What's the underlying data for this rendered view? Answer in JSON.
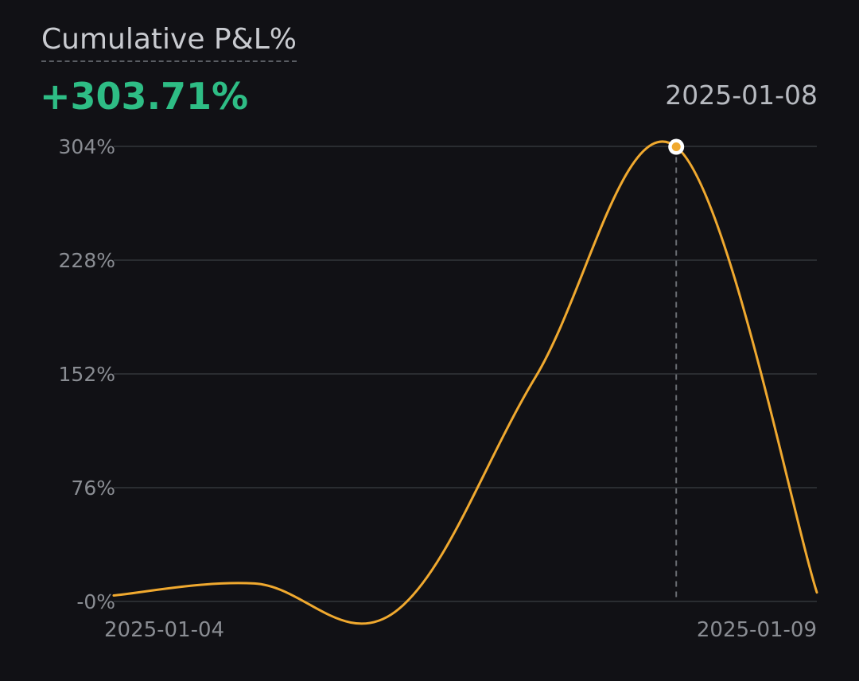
{
  "header": {
    "title": "Cumulative P&L%",
    "value": "+303.71%",
    "selected_date": "2025-01-08"
  },
  "colors": {
    "background": "#111115",
    "line": "#f0a92f",
    "positive": "#2ebd85",
    "grid": "#2a2d31"
  },
  "chart_data": {
    "type": "line",
    "title": "Cumulative P&L%",
    "xlabel": "",
    "ylabel": "",
    "ylim": [
      0,
      304
    ],
    "y_ticks": [
      "304%",
      "228%",
      "152%",
      "76%",
      "-0%"
    ],
    "y_tick_values": [
      304,
      228,
      152,
      76,
      0
    ],
    "x_tick_labels": [
      "2025-01-04",
      "2025-01-09"
    ],
    "x_range": [
      "2025-01-04",
      "2025-01-09"
    ],
    "grid": true,
    "series": [
      {
        "points": [
          [
            "2025-01-04",
            4
          ],
          [
            "2025-01-05",
            12
          ],
          [
            "2025-01-06",
            -7
          ],
          [
            "2025-01-07",
            150
          ],
          [
            "2025-01-08",
            303.71
          ],
          [
            "2025-01-09",
            6
          ]
        ]
      }
    ],
    "highlight": {
      "x": "2025-01-08",
      "y": 303.71,
      "label": "+303.71%"
    }
  }
}
